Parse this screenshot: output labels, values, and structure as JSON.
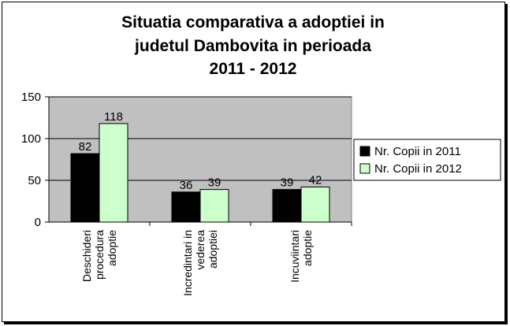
{
  "chart_data": {
    "type": "bar",
    "title_lines": [
      "Situatia comparativa a adoptiei in",
      "judetul Dambovita in perioada",
      "2011 - 2012"
    ],
    "categories": [
      [
        "Deschideri",
        "procedura",
        "adoptie"
      ],
      [
        "Incredintari in",
        "vederea",
        "adoptiei"
      ],
      [
        "Incuviintari",
        "adoptie"
      ]
    ],
    "series": [
      {
        "name": "Nr. Copii in 2011",
        "values": [
          82,
          36,
          39
        ],
        "color": "#000000"
      },
      {
        "name": "Nr. Copii in 2012",
        "values": [
          118,
          39,
          42
        ],
        "color": "#ccffcc"
      }
    ],
    "ylim": [
      0,
      150
    ],
    "yticks": [
      0,
      50,
      100,
      150
    ],
    "grid": true,
    "plot_background": "#c0c0c0",
    "legend_position": "right"
  }
}
